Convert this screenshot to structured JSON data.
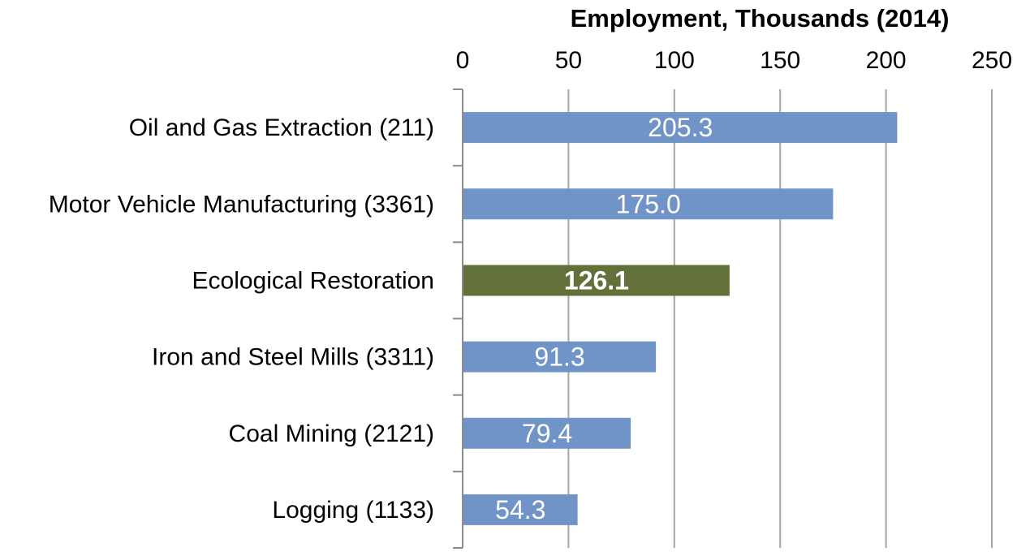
{
  "chart_data": {
    "type": "bar",
    "orientation": "horizontal",
    "title": "Employment, Thousands (2014)",
    "axis_position": "top",
    "xlim": [
      0,
      250
    ],
    "xticks": [
      "0",
      "50",
      "100",
      "150",
      "200",
      "250"
    ],
    "grid": true,
    "categories": [
      "Oil and Gas Extraction (211)",
      "Motor Vehicle Manufacturing (3361)",
      "Ecological Restoration",
      "Iron and Steel Mills (3311)",
      "Coal Mining (2121)",
      "Logging (1133)"
    ],
    "values": [
      205.3,
      175.0,
      126.1,
      91.3,
      79.4,
      54.3
    ],
    "data_labels": [
      "205.3",
      "175.0",
      "126.1",
      "91.3",
      "79.4",
      "54.3"
    ],
    "highlighted_index": 2,
    "colors": {
      "default_bar": "#7194c8",
      "highlight_bar": "#627039"
    }
  }
}
